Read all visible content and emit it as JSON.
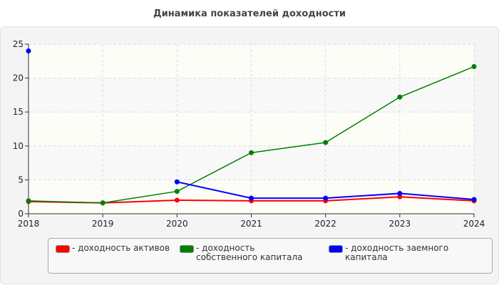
{
  "chart_data": {
    "type": "line",
    "title": "Динамика показателей доходности",
    "xlabel": "",
    "ylabel": "",
    "x": [
      "2018",
      "2019",
      "2020",
      "2021",
      "2022",
      "2023",
      "2024"
    ],
    "ylim": [
      0,
      25
    ],
    "yticks": [
      "0",
      "5",
      "10",
      "15",
      "20",
      "25"
    ],
    "grid": true,
    "legend_position": "bottom",
    "series": [
      {
        "name": "- доходность активов",
        "color": "#ff0000",
        "values": [
          1.8,
          1.6,
          2.0,
          1.9,
          1.9,
          2.5,
          1.9
        ]
      },
      {
        "name": "- доходность собственного капитала",
        "color": "#008000",
        "values": [
          1.9,
          1.6,
          3.3,
          9.0,
          10.5,
          17.2,
          21.7
        ]
      },
      {
        "name": "- доходность заемного капитала",
        "color": "#0000ff",
        "values": [
          24.0,
          null,
          4.7,
          2.3,
          2.3,
          3.0,
          2.1
        ]
      }
    ]
  }
}
